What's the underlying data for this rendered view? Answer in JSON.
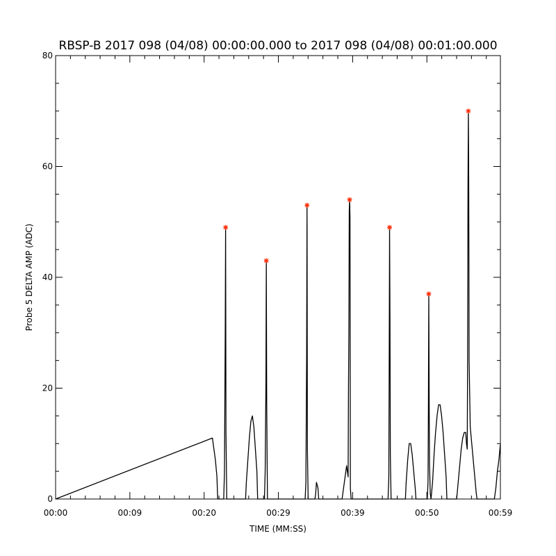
{
  "chart_data": {
    "type": "line",
    "title": "RBSP-B 2017 098 (04/08) 00:00:00.000 to 2017 098 (04/08) 00:01:00.000",
    "xlabel": "TIME (MM:SS)",
    "ylabel": "Probe 5 DELTA AMP (ADC)",
    "xlim": [
      0,
      59
    ],
    "ylim": [
      0,
      80
    ],
    "x_tick_values": [
      0,
      9.85,
      19.7,
      29.55,
      39.4,
      49.25,
      59.1
    ],
    "x_tick_labels": [
      "00:00",
      "00:09",
      "00:20",
      "00:29",
      "00:39",
      "00:50",
      "00:59"
    ],
    "y_tick_values": [
      0,
      20,
      40,
      60,
      80
    ],
    "y_tick_labels": [
      "0",
      "20",
      "40",
      "60",
      "80"
    ],
    "grid": false,
    "series": [
      {
        "style": "line",
        "color": "#000000",
        "points": [
          [
            20.8,
            11
          ],
          [
            21.0,
            9
          ],
          [
            21.2,
            7
          ],
          [
            21.4,
            4
          ],
          [
            21.5,
            0
          ],
          [
            22.2,
            0
          ],
          [
            22.3,
            0
          ],
          [
            22.4,
            5
          ],
          [
            22.5,
            30
          ],
          [
            22.55,
            49
          ],
          [
            22.6,
            12
          ],
          [
            22.7,
            0
          ],
          [
            25.2,
            0
          ],
          [
            25.3,
            3
          ],
          [
            25.5,
            7
          ],
          [
            25.7,
            11
          ],
          [
            25.9,
            14
          ],
          [
            26.1,
            15
          ],
          [
            26.3,
            13
          ],
          [
            26.5,
            9
          ],
          [
            26.7,
            5
          ],
          [
            26.8,
            0
          ],
          [
            27.7,
            0
          ],
          [
            27.8,
            5
          ],
          [
            27.9,
            21
          ],
          [
            27.95,
            43
          ],
          [
            28.0,
            18
          ],
          [
            28.1,
            0
          ],
          [
            33.1,
            0
          ],
          [
            33.2,
            3
          ],
          [
            33.3,
            26
          ],
          [
            33.35,
            53
          ],
          [
            33.4,
            9
          ],
          [
            33.5,
            0
          ],
          [
            34.4,
            0
          ],
          [
            34.5,
            1
          ],
          [
            34.6,
            3
          ],
          [
            34.8,
            2
          ],
          [
            34.9,
            0
          ],
          [
            38.0,
            0
          ],
          [
            38.2,
            2
          ],
          [
            38.4,
            4
          ],
          [
            38.5,
            5
          ],
          [
            38.6,
            6
          ],
          [
            38.7,
            5
          ],
          [
            38.8,
            4
          ],
          [
            38.85,
            20
          ],
          [
            38.9,
            30
          ],
          [
            38.95,
            52
          ],
          [
            39.0,
            54
          ],
          [
            39.05,
            51
          ],
          [
            39.1,
            2
          ],
          [
            39.2,
            0
          ],
          [
            44.1,
            0
          ],
          [
            44.2,
            4
          ],
          [
            44.25,
            24
          ],
          [
            44.3,
            49
          ],
          [
            44.35,
            33
          ],
          [
            44.4,
            8
          ],
          [
            44.5,
            0
          ],
          [
            46.4,
            0
          ],
          [
            46.5,
            3
          ],
          [
            46.7,
            7
          ],
          [
            46.9,
            10
          ],
          [
            47.1,
            10
          ],
          [
            47.3,
            8
          ],
          [
            47.5,
            5
          ],
          [
            47.7,
            2
          ],
          [
            47.8,
            0
          ],
          [
            49.3,
            0
          ],
          [
            49.4,
            3
          ],
          [
            49.45,
            16
          ],
          [
            49.5,
            37
          ],
          [
            49.55,
            18
          ],
          [
            49.6,
            6
          ],
          [
            49.7,
            1
          ],
          [
            49.8,
            0
          ],
          [
            50.0,
            3
          ],
          [
            50.2,
            8
          ],
          [
            50.4,
            12
          ],
          [
            50.6,
            15
          ],
          [
            50.8,
            17
          ],
          [
            51.0,
            17
          ],
          [
            51.2,
            15
          ],
          [
            51.4,
            12
          ],
          [
            51.6,
            8
          ],
          [
            51.8,
            4
          ],
          [
            51.9,
            0
          ],
          [
            53.2,
            0
          ],
          [
            53.4,
            3
          ],
          [
            53.6,
            6
          ],
          [
            53.8,
            9
          ],
          [
            54.0,
            11
          ],
          [
            54.2,
            12
          ],
          [
            54.4,
            12
          ],
          [
            54.5,
            10
          ],
          [
            54.6,
            9
          ],
          [
            54.65,
            25
          ],
          [
            54.7,
            56
          ],
          [
            54.75,
            70
          ],
          [
            54.8,
            57
          ],
          [
            54.85,
            25
          ],
          [
            55.0,
            13
          ],
          [
            55.2,
            10
          ],
          [
            55.4,
            7
          ],
          [
            55.6,
            4
          ],
          [
            55.8,
            1
          ],
          [
            55.9,
            0
          ],
          [
            58.2,
            0
          ],
          [
            58.4,
            2
          ],
          [
            58.6,
            5
          ],
          [
            58.8,
            7
          ],
          [
            59.0,
            10
          ]
        ]
      },
      {
        "style": "marker",
        "marker": "asterisk",
        "color": "#ff2a00",
        "points": [
          [
            22.55,
            49
          ],
          [
            27.95,
            43
          ],
          [
            33.35,
            53
          ],
          [
            39.0,
            54
          ],
          [
            44.3,
            49
          ],
          [
            49.5,
            37
          ],
          [
            54.75,
            70
          ]
        ]
      }
    ]
  }
}
